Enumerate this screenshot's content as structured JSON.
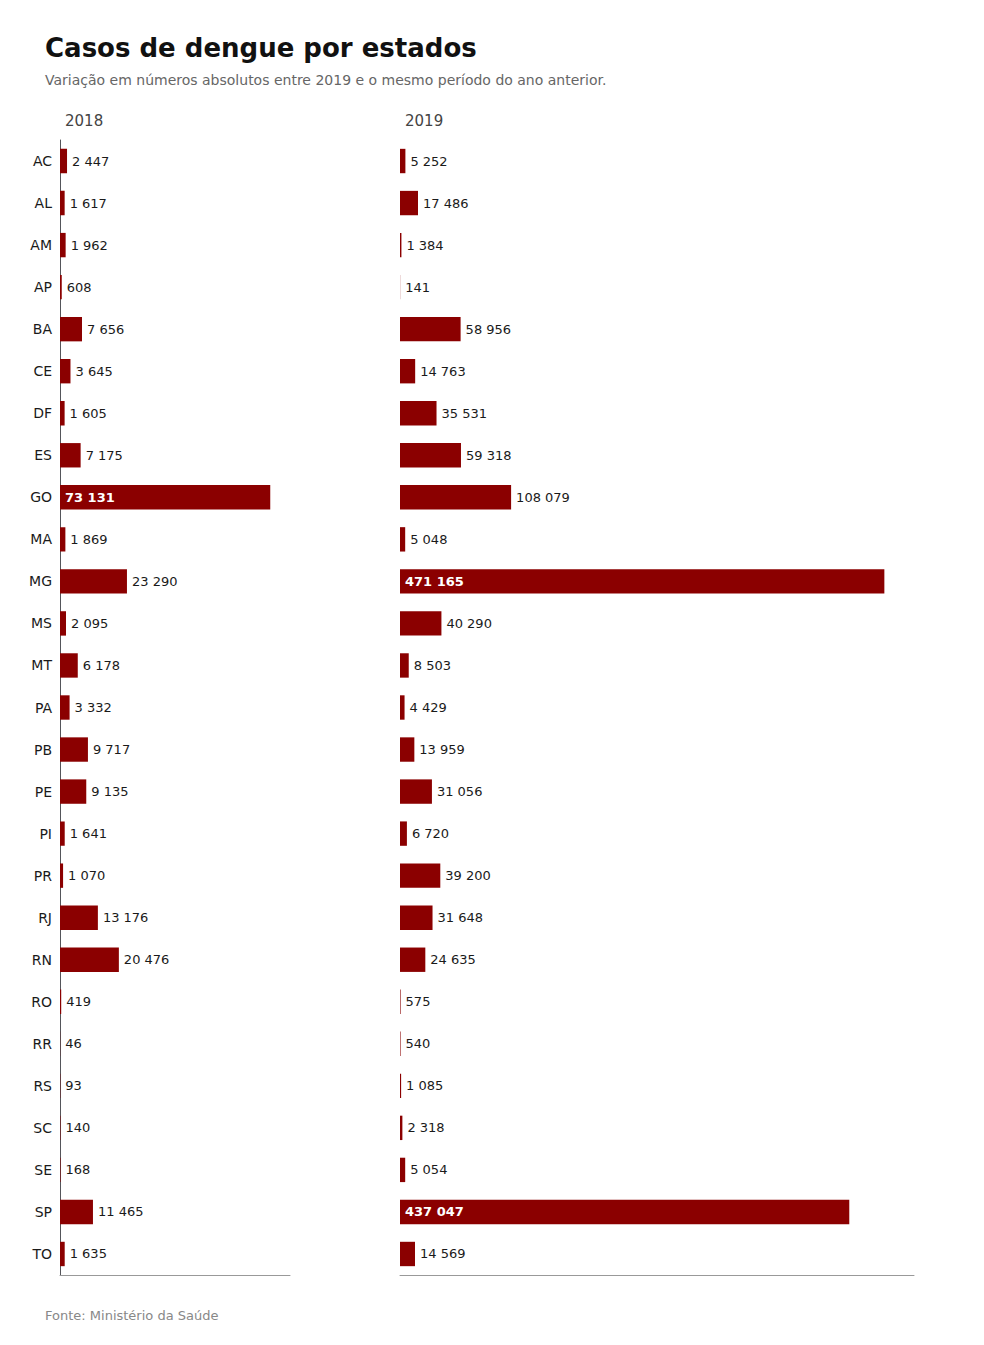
{
  "chart_data": [
    {
      "type": "bar",
      "orientation": "horizontal",
      "title": "Casos de dengue por estados",
      "subtitle": "Variação em números absolutos entre 2019 e o mesmo período do ano anterior.",
      "annotation": "Fonte: Ministério da Saúde",
      "categories": [
        "AC",
        "AL",
        "AM",
        "AP",
        "BA",
        "CE",
        "DF",
        "ES",
        "GO",
        "MA",
        "MG",
        "MS",
        "MT",
        "PA",
        "PB",
        "PE",
        "PI",
        "PR",
        "RJ",
        "RN",
        "RO",
        "RR",
        "RS",
        "SC",
        "SE",
        "SP",
        "TO"
      ],
      "series": [
        {
          "name": "2018",
          "color": "#8B0000",
          "values": [
            2447,
            1617,
            1962,
            608,
            7656,
            3645,
            1605,
            7175,
            73131,
            1869,
            23290,
            2095,
            6178,
            3332,
            9717,
            9135,
            1641,
            1070,
            13176,
            20476,
            419,
            46,
            93,
            140,
            168,
            11465,
            1635
          ],
          "value_labels": [
            "2 447",
            "1 617",
            "1 962",
            "608",
            "7 656",
            "3 645",
            "1 605",
            "7 175",
            "73 131",
            "1 869",
            "23 290",
            "2 095",
            "6 178",
            "3 332",
            "9 717",
            "9 135",
            "1 641",
            "1 070",
            "13 176",
            "20 476",
            "419",
            "46",
            "93",
            "140",
            "168",
            "11 465",
            "1 635"
          ]
        }
      ],
      "xlim": [
        0,
        80000
      ],
      "data_labels": true,
      "grid": false,
      "tick_labels": "y"
    },
    {
      "type": "bar",
      "orientation": "horizontal",
      "categories": [
        "AC",
        "AL",
        "AM",
        "AP",
        "BA",
        "CE",
        "DF",
        "ES",
        "GO",
        "MA",
        "MG",
        "MS",
        "MT",
        "PA",
        "PB",
        "PE",
        "PI",
        "PR",
        "RJ",
        "RN",
        "RO",
        "RR",
        "RS",
        "SC",
        "SE",
        "SP",
        "TO"
      ],
      "series": [
        {
          "name": "2019",
          "color": "#8B0000",
          "values": [
            5252,
            17486,
            1384,
            141,
            58956,
            14763,
            35531,
            59318,
            108079,
            5048,
            471165,
            40290,
            8503,
            4429,
            13959,
            31056,
            6720,
            39200,
            31648,
            24635,
            575,
            540,
            1085,
            2318,
            5054,
            437047,
            14569
          ],
          "value_labels": [
            "5 252",
            "17 486",
            "1 384",
            "141",
            "58 956",
            "14 763",
            "35 531",
            "59 318",
            "108 079",
            "5 048",
            "471 165",
            "40 290",
            "8 503",
            "4 429",
            "13 959",
            "31 056",
            "6 720",
            "39 200",
            "31 648",
            "24 635",
            "575",
            "540",
            "1 085",
            "2 318",
            "5 054",
            "437 047",
            "14 569"
          ]
        }
      ],
      "xlim": [
        0,
        500000
      ],
      "data_labels": true,
      "grid": false,
      "tick_labels": false
    }
  ]
}
